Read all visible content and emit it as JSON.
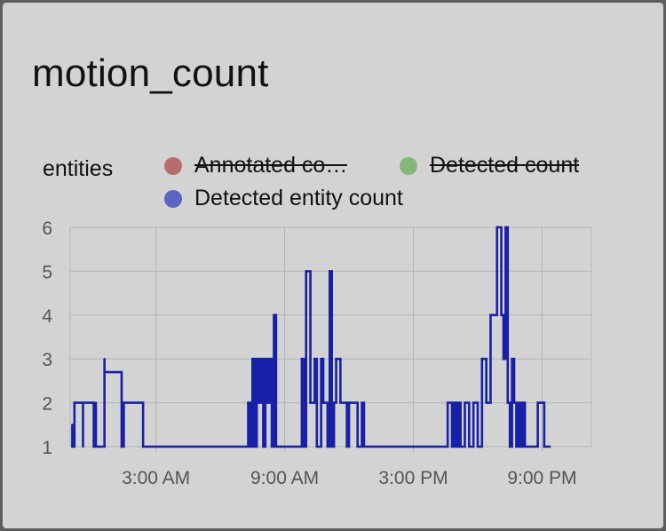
{
  "card": {
    "title": "motion_count"
  },
  "chart_data": {
    "type": "line",
    "ylabel": "entities",
    "ylim": [
      1,
      6
    ],
    "yticks": [
      "1",
      "2",
      "3",
      "4",
      "5",
      "6"
    ],
    "xlim_hours": [
      -1,
      23.3
    ],
    "xticks": [
      {
        "label": "3:00 AM",
        "hour": 3
      },
      {
        "label": "9:00 AM",
        "hour": 9
      },
      {
        "label": "3:00 PM",
        "hour": 15
      },
      {
        "label": "9:00 PM",
        "hour": 21
      }
    ],
    "grid": true,
    "legend": "top",
    "series": [
      {
        "name": "Annotated co…",
        "color": "#b86d6d",
        "hidden": true,
        "x": [],
        "y": []
      },
      {
        "name": "Detected count",
        "color": "#86b77a",
        "hidden": true,
        "x": [],
        "y": []
      },
      {
        "name": "Detected entity count",
        "color": "#1720a6",
        "hidden": false,
        "x": [
          -0.9,
          -0.9,
          -0.8,
          -0.8,
          -0.5,
          -0.4,
          -0.4,
          0.1,
          0.1,
          0.2,
          0.2,
          0.3,
          0.6,
          0.6,
          1.4,
          1.4,
          1.5,
          1.5,
          2.4,
          2.4,
          7.2,
          7.3,
          7.4,
          7.5,
          7.6,
          7.7,
          7.8,
          7.9,
          8.0,
          8.1,
          8.2,
          8.3,
          8.4,
          8.5,
          8.6,
          8.7,
          8.8,
          8.9,
          9.2,
          9.4,
          9.8,
          9.9,
          10.0,
          10.2,
          10.4,
          10.5,
          10.7,
          10.8,
          11.0,
          11.1,
          11.2,
          11.3,
          11.4,
          11.6,
          11.8,
          11.9,
          12.0,
          12.2,
          12.4,
          12.6,
          12.7,
          12.9,
          14.6,
          15.0,
          15.2,
          15.5,
          16.6,
          16.8,
          16.9,
          17.0,
          17.1,
          17.2,
          17.4,
          17.6,
          17.8,
          18.0,
          18.2,
          18.4,
          18.6,
          18.9,
          19.1,
          19.2,
          19.3,
          19.4,
          19.5,
          19.6,
          19.7,
          19.8,
          19.9,
          20.0,
          20.1,
          20.2,
          20.4,
          20.7,
          20.8,
          21.0,
          21.1,
          21.3
        ],
        "y": [
          1.5,
          1,
          2,
          2,
          2,
          1,
          2,
          2,
          1,
          2,
          1,
          1,
          3,
          2.7,
          1,
          1,
          2,
          2,
          1,
          1,
          1,
          2,
          1,
          3,
          1,
          3,
          2,
          3,
          1,
          3,
          2,
          3,
          1,
          4,
          1,
          1,
          1,
          1,
          1,
          1,
          3,
          1,
          5,
          2,
          3,
          1,
          3,
          2,
          1,
          5,
          1,
          2,
          3,
          2,
          2,
          1,
          2,
          2,
          1,
          2,
          1,
          1,
          1,
          1,
          1,
          1,
          2,
          1,
          2,
          1,
          2,
          1,
          2,
          1,
          2,
          1,
          3,
          2,
          4,
          6,
          4,
          3,
          6,
          2,
          1,
          3,
          2,
          1,
          2,
          1,
          2,
          1,
          1,
          1,
          2,
          2,
          1,
          1
        ]
      }
    ]
  }
}
